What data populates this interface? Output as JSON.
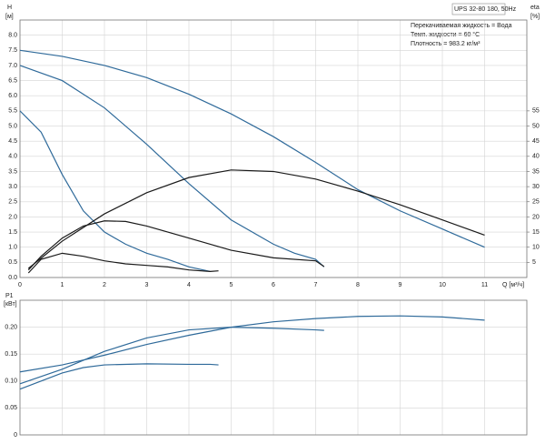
{
  "chart_data": [
    {
      "type": "line",
      "title": "UPS 32-80 180, 50Hz",
      "annotations": [
        "Перекачиваемая жидкость = Вода",
        "Темп. жидкости = 60 °C",
        "Плотность = 983.2 кг/м³"
      ],
      "ylabel": "H",
      "yunit": "[м]",
      "y2label": "eta",
      "y2unit": "[%]",
      "xlabel": "Q [м³/ч]",
      "xlim": [
        0,
        12
      ],
      "xticks": [
        0,
        1,
        2,
        3,
        4,
        5,
        6,
        7,
        8,
        9,
        10,
        11
      ],
      "ylim": [
        0,
        8.5
      ],
      "yticks": [
        {
          "value": 0,
          "label": "0.0"
        },
        0.5,
        {
          "value": 1,
          "label": "1.0"
        },
        1.5,
        {
          "value": 2,
          "label": "2.0"
        },
        2.5,
        {
          "value": 3,
          "label": "3.0"
        },
        3.5,
        {
          "value": 4,
          "label": "4.0"
        },
        4.5,
        {
          "value": 5,
          "label": "5.0"
        },
        5.5,
        {
          "value": 6,
          "label": "6.0"
        },
        6.5,
        {
          "value": 7,
          "label": "7.0"
        },
        7.5,
        {
          "value": 8,
          "label": "8.0"
        }
      ],
      "y2lim": [
        0,
        85
      ],
      "y2ticks": [
        5,
        10,
        15,
        20,
        25,
        30,
        35,
        40,
        45,
        50,
        55
      ],
      "grid": true,
      "show_xtick_labels": true,
      "series": [
        {
          "color": "#2f6a9a",
          "x": [
            0,
            1,
            2,
            3,
            4,
            5,
            6,
            7,
            8,
            9,
            10,
            11
          ],
          "values": [
            7.5,
            7.3,
            7.0,
            6.6,
            6.05,
            5.4,
            4.65,
            3.8,
            2.9,
            2.2,
            1.6,
            1.0
          ]
        },
        {
          "color": "#2f6a9a",
          "x": [
            0,
            1,
            2,
            3,
            4,
            5,
            6,
            6.5,
            7,
            7.2
          ],
          "values": [
            7.0,
            6.5,
            5.6,
            4.4,
            3.1,
            1.9,
            1.1,
            0.8,
            0.6,
            0.35
          ]
        },
        {
          "color": "#2f6a9a",
          "x": [
            0,
            0.5,
            1,
            1.5,
            2,
            2.5,
            3,
            3.5,
            4,
            4.5
          ],
          "values": [
            5.5,
            4.8,
            3.4,
            2.2,
            1.5,
            1.1,
            0.8,
            0.6,
            0.35,
            0.2
          ]
        },
        {
          "color": "#1a1a1a",
          "axis": "y2",
          "x": [
            0.2,
            1,
            2,
            3,
            4,
            5,
            6,
            7,
            8,
            9,
            10,
            11
          ],
          "values": [
            3,
            12,
            21,
            28,
            33,
            35.5,
            35,
            32.5,
            28.5,
            24,
            19,
            14
          ]
        },
        {
          "color": "#1a1a1a",
          "axis": "y2",
          "x": [
            0.2,
            0.5,
            1,
            1.5,
            2,
            2.5,
            3,
            4,
            5,
            6,
            7,
            7.2
          ],
          "values": [
            2.5,
            7,
            13,
            17,
            18.7,
            18.5,
            17,
            13,
            9,
            6.5,
            5.5,
            3.6
          ]
        },
        {
          "color": "#1a1a1a",
          "axis": "y2",
          "x": [
            0.2,
            0.5,
            1,
            1.5,
            2,
            2.5,
            3,
            3.5,
            4,
            4.5,
            4.7
          ],
          "values": [
            1.5,
            6,
            8,
            7,
            5.5,
            4.5,
            4,
            3.5,
            2.5,
            2,
            2.2
          ]
        }
      ]
    },
    {
      "type": "line",
      "ylabel": "P1",
      "yunit": "[кВт]",
      "xlim": [
        0,
        12
      ],
      "xticks": [
        0,
        1,
        2,
        3,
        4,
        5,
        6,
        7,
        8,
        9,
        10,
        11
      ],
      "ylim": [
        0,
        0.25
      ],
      "yticks": [
        0,
        0.05,
        {
          "value": 0.1,
          "label": "0.10"
        },
        0.15,
        {
          "value": 0.2,
          "label": "0.20"
        }
      ],
      "grid": true,
      "show_xtick_labels": false,
      "series": [
        {
          "color": "#2f6a9a",
          "x": [
            0,
            1,
            2,
            3,
            4,
            5,
            6,
            7,
            8,
            9,
            10,
            11
          ],
          "values": [
            0.117,
            0.13,
            0.148,
            0.168,
            0.185,
            0.2,
            0.21,
            0.216,
            0.22,
            0.221,
            0.219,
            0.213
          ]
        },
        {
          "color": "#2f6a9a",
          "x": [
            0,
            1,
            2,
            3,
            4,
            5,
            6,
            7,
            7.2
          ],
          "values": [
            0.095,
            0.122,
            0.155,
            0.18,
            0.195,
            0.2,
            0.198,
            0.195,
            0.194
          ]
        },
        {
          "color": "#2f6a9a",
          "x": [
            0,
            0.5,
            1,
            1.5,
            2,
            3,
            4,
            4.5,
            4.7
          ],
          "values": [
            0.085,
            0.1,
            0.115,
            0.125,
            0.13,
            0.132,
            0.131,
            0.131,
            0.13
          ]
        }
      ]
    }
  ]
}
